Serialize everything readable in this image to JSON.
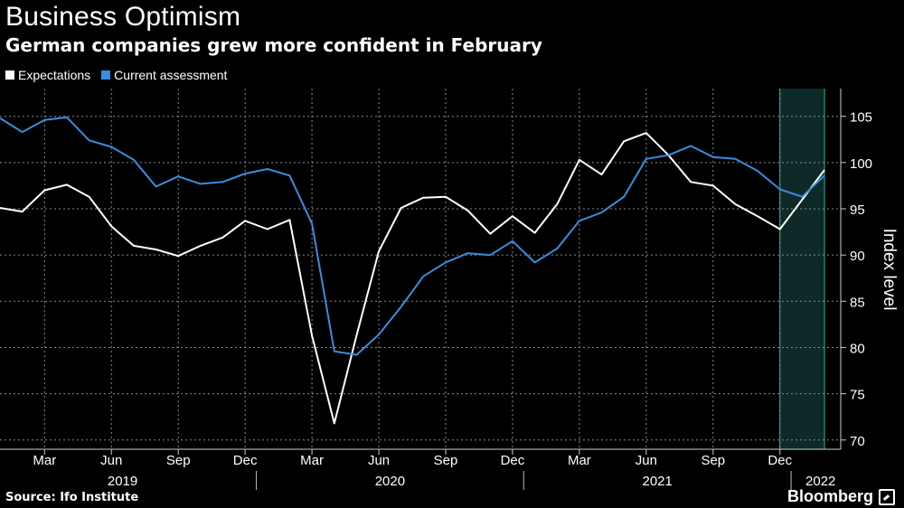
{
  "header": {
    "title": "Business Optimism",
    "subtitle": "German companies grew more confident in February"
  },
  "legend": [
    {
      "label": "Expectations",
      "color": "#ffffff"
    },
    {
      "label": "Current assessment",
      "color": "#3a8dde"
    }
  ],
  "footer": {
    "source": "Source: Ifo Institute",
    "brand": "Bloomberg"
  },
  "chart_data": {
    "type": "line",
    "title": "Business Optimism",
    "subtitle": "German companies grew more confident in February",
    "ylabel": "Index level",
    "ylim": [
      69,
      108
    ],
    "yticks": [
      70,
      75,
      80,
      85,
      90,
      95,
      100,
      105
    ],
    "grid": true,
    "legend_position": "top-left",
    "x": [
      "2019-01",
      "2019-02",
      "2019-03",
      "2019-04",
      "2019-05",
      "2019-06",
      "2019-07",
      "2019-08",
      "2019-09",
      "2019-10",
      "2019-11",
      "2019-12",
      "2020-01",
      "2020-02",
      "2020-03",
      "2020-04",
      "2020-05",
      "2020-06",
      "2020-07",
      "2020-08",
      "2020-09",
      "2020-10",
      "2020-11",
      "2020-12",
      "2021-01",
      "2021-02",
      "2021-03",
      "2021-04",
      "2021-05",
      "2021-06",
      "2021-07",
      "2021-08",
      "2021-09",
      "2021-10",
      "2021-11",
      "2021-12",
      "2022-01",
      "2022-02"
    ],
    "xticks": [
      {
        "label": "Mar",
        "month": 2
      },
      {
        "label": "Jun",
        "month": 5
      },
      {
        "label": "Sep",
        "month": 8
      },
      {
        "label": "Dec",
        "month": 11
      },
      {
        "label": "Mar",
        "month": 14
      },
      {
        "label": "Jun",
        "month": 17
      },
      {
        "label": "Sep",
        "month": 20
      },
      {
        "label": "Dec",
        "month": 23
      },
      {
        "label": "Mar",
        "month": 26
      },
      {
        "label": "Jun",
        "month": 29
      },
      {
        "label": "Sep",
        "month": 32
      },
      {
        "label": "Dec",
        "month": 35
      }
    ],
    "years": [
      "2019",
      "2020",
      "2021",
      "2022"
    ],
    "highlight": {
      "from_month": 35,
      "to_month": 37,
      "color": "#0e2a28",
      "edge_color": "#2ab3a0"
    },
    "series": [
      {
        "name": "Expectations",
        "color": "#ffffff",
        "values": [
          95.1,
          94.7,
          97.0,
          97.6,
          96.3,
          93.1,
          91.0,
          90.6,
          89.9,
          91.0,
          91.9,
          93.7,
          92.8,
          93.8,
          81.3,
          71.8,
          81.3,
          90.4,
          95.1,
          96.2,
          96.3,
          94.8,
          92.3,
          94.2,
          92.4,
          95.5,
          100.3,
          98.7,
          102.3,
          103.2,
          100.8,
          97.9,
          97.5,
          95.5,
          94.2,
          92.8,
          96.0,
          99.2
        ]
      },
      {
        "name": "Current assessment",
        "color": "#3a8dde",
        "values": [
          104.8,
          103.3,
          104.6,
          104.9,
          102.4,
          101.7,
          100.3,
          97.4,
          98.5,
          97.7,
          97.9,
          98.8,
          99.3,
          98.6,
          93.4,
          79.6,
          79.2,
          81.4,
          84.4,
          87.7,
          89.2,
          90.2,
          90.0,
          91.5,
          89.2,
          90.7,
          93.7,
          94.6,
          96.3,
          100.4,
          100.8,
          101.8,
          100.6,
          100.4,
          99.1,
          97.1,
          96.3,
          98.6
        ]
      }
    ]
  }
}
